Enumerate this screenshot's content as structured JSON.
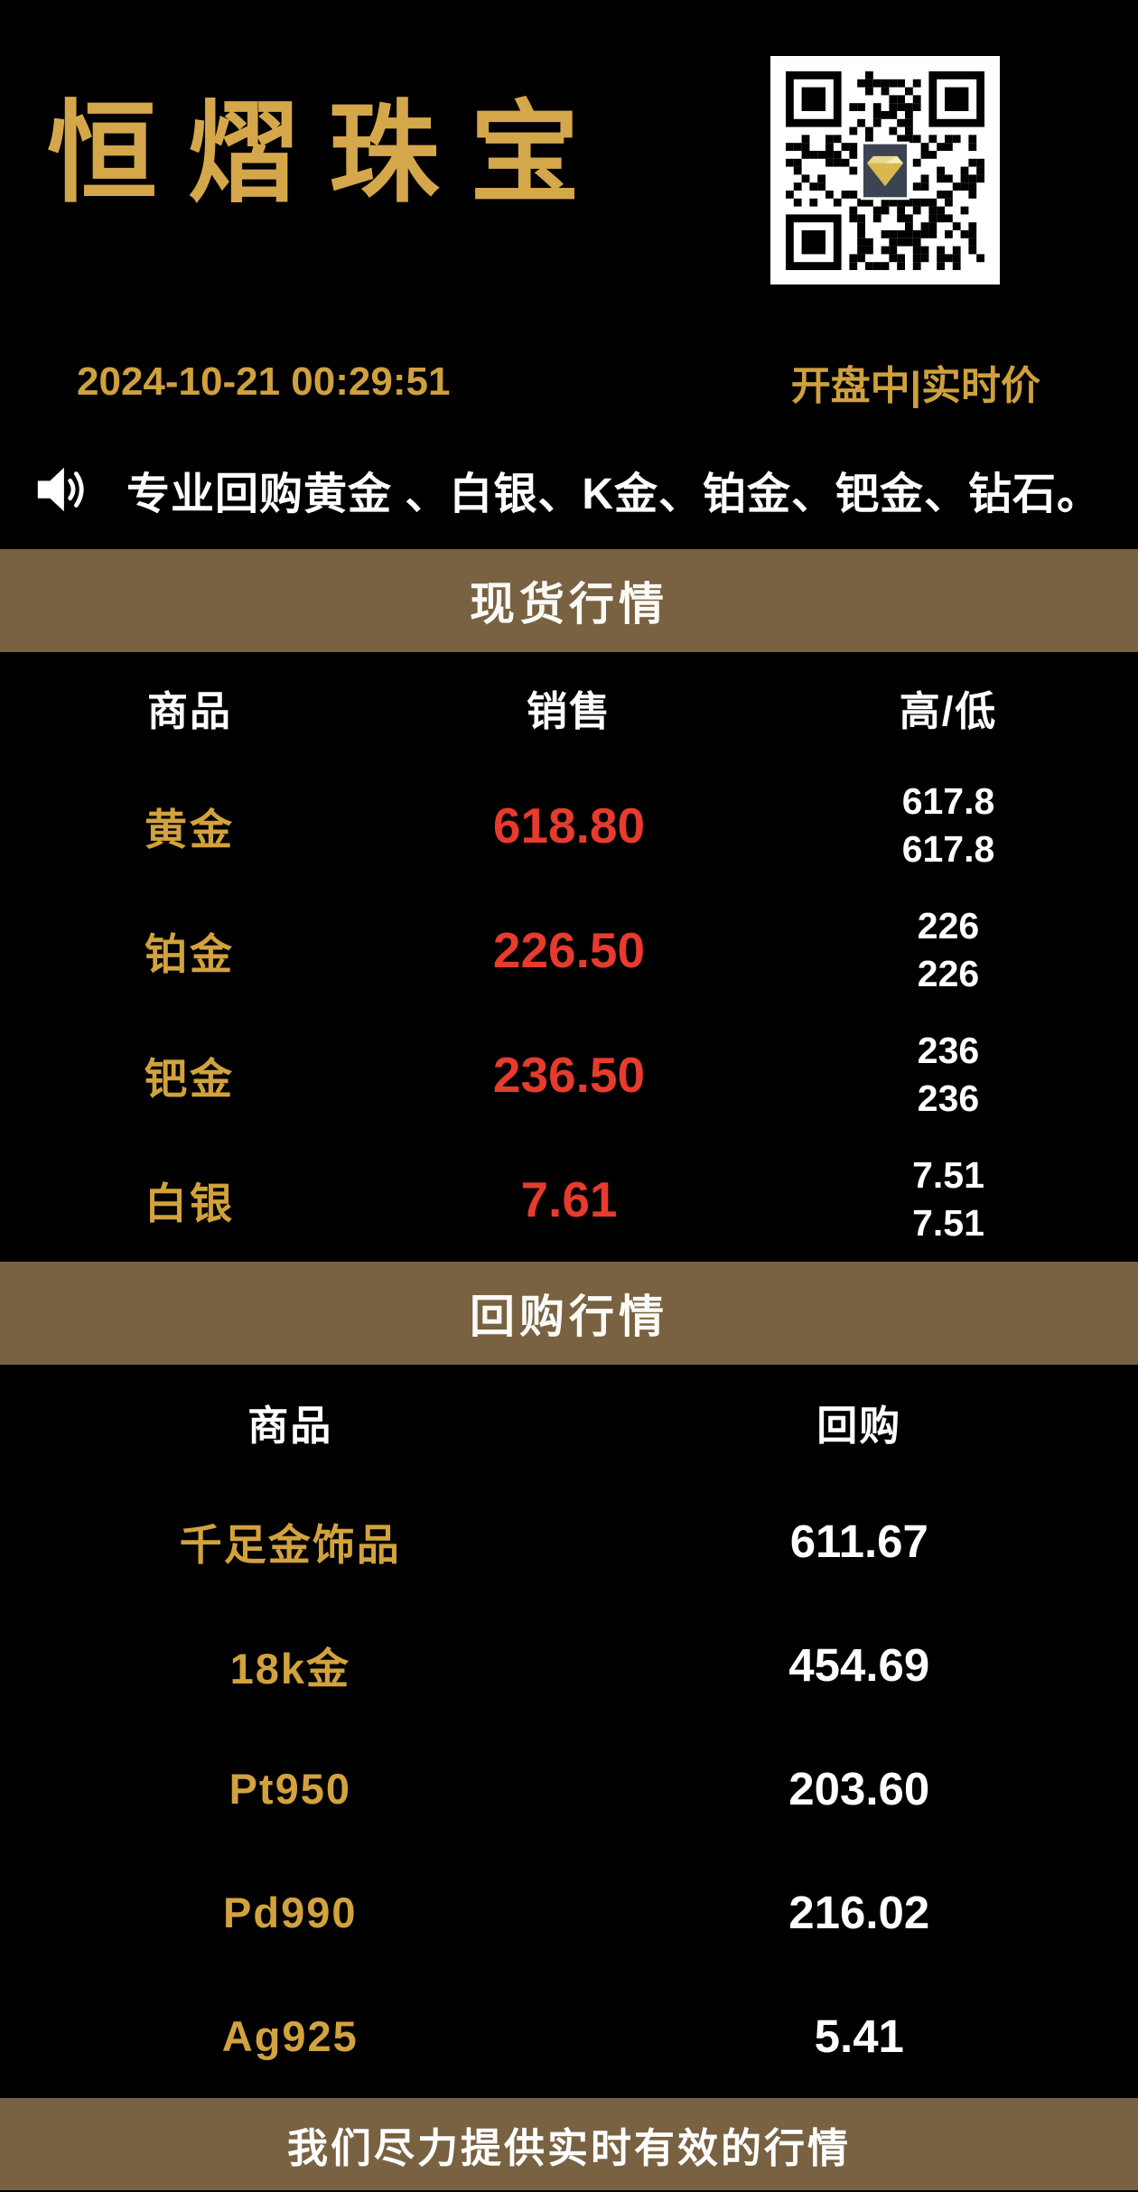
{
  "brand": {
    "logo_text": "恒熠珠宝"
  },
  "header": {
    "datetime": "2024-10-21 00:29:51",
    "status": "开盘中|实时价"
  },
  "announcement": {
    "icon": "speaker-icon",
    "text": "专业回购黄金 、白银、K金、铂金、钯金、钻石。"
  },
  "spot_section": {
    "title": "现货行情",
    "columns": {
      "product": "商品",
      "sale": "销售",
      "high_low": "高/低"
    },
    "rows": [
      {
        "name": "黄金",
        "price": "618.80",
        "high": "617.8",
        "low": "617.8"
      },
      {
        "name": "铂金",
        "price": "226.50",
        "high": "226",
        "low": "226"
      },
      {
        "name": "钯金",
        "price": "236.50",
        "high": "236",
        "low": "236"
      },
      {
        "name": "白银",
        "price": "7.61",
        "high": "7.51",
        "low": "7.51"
      }
    ]
  },
  "buyback_section": {
    "title": "回购行情",
    "columns": {
      "product": "商品",
      "buyback": "回购"
    },
    "rows": [
      {
        "name": "千足金饰品",
        "price": "611.67"
      },
      {
        "name": "18k金",
        "price": "454.69"
      },
      {
        "name": "Pt950",
        "price": "203.60"
      },
      {
        "name": "Pd990",
        "price": "216.02"
      },
      {
        "name": "Ag925",
        "price": "5.41"
      }
    ]
  },
  "footer": {
    "text": "我们尽力提供实时有效的行情"
  },
  "icons": {
    "qr": "qr-code",
    "center_logo": "diamond-logo",
    "announcement": "speaker-icon"
  },
  "colors": {
    "background": "#000000",
    "gold_text": "#d2a23d",
    "logo_gold": "#d5a74b",
    "price_red": "#e63b2d",
    "bar_brown": "#786242",
    "white": "#ffffff"
  }
}
